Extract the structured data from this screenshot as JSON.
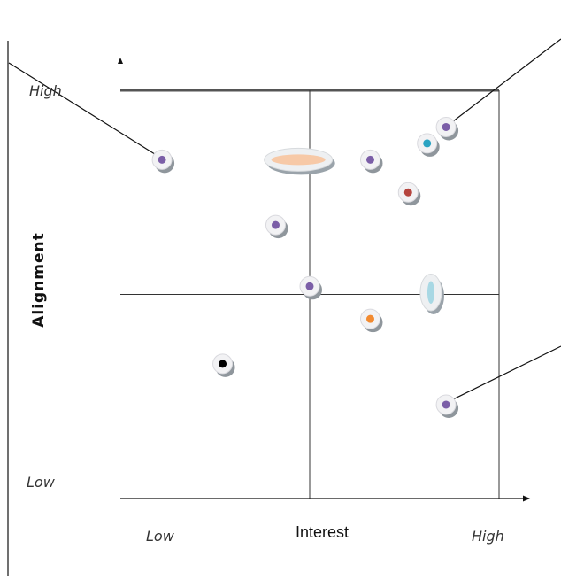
{
  "chart_data": {
    "type": "scatter",
    "title": "",
    "xlabel": "Interest",
    "ylabel": "Alignment",
    "x_ticks": [
      "Low",
      "High"
    ],
    "y_ticks": [
      "Low",
      "High"
    ],
    "xlim": [
      0,
      10
    ],
    "ylim": [
      0,
      10
    ],
    "grid": "quadrants",
    "points": [
      {
        "x": 1.1,
        "y": 8.3,
        "color": "#7b5ea7"
      },
      {
        "x": 8.6,
        "y": 9.1,
        "color": "#7b5ea7"
      },
      {
        "x": 8.1,
        "y": 8.7,
        "color": "#2aa3c2"
      },
      {
        "x": 6.6,
        "y": 8.3,
        "color": "#7b5ea7"
      },
      {
        "x": 7.6,
        "y": 7.5,
        "color": "#b5443e"
      },
      {
        "x": 4.1,
        "y": 6.7,
        "color": "#7b5ea7"
      },
      {
        "x": 5.0,
        "y": 5.2,
        "color": "#7b5ea7"
      },
      {
        "x": 6.6,
        "y": 4.4,
        "color": "#f28a30"
      },
      {
        "x": 2.7,
        "y": 3.3,
        "color": "#000000"
      },
      {
        "x": 8.6,
        "y": 2.3,
        "color": "#7b5ea7"
      }
    ],
    "ranges": [
      {
        "x_from": 3.8,
        "x_to": 5.6,
        "y": 8.3,
        "color": "#f7c9a7",
        "orientation": "horizontal"
      },
      {
        "x": 8.2,
        "y_from": 4.6,
        "y_to": 5.5,
        "color": "#a8d8e4",
        "orientation": "vertical"
      }
    ]
  }
}
